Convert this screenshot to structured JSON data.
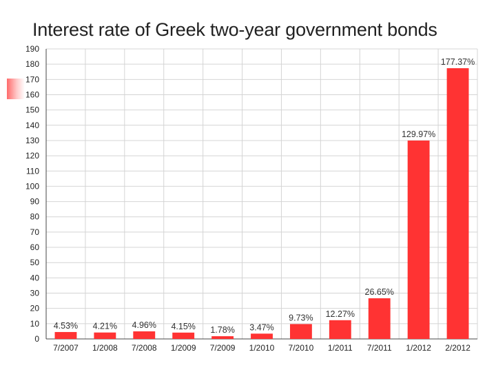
{
  "chart_data": {
    "type": "bar",
    "title": "Interest rate of Greek two-year government bonds",
    "xlabel": "",
    "ylabel": "",
    "ylim": [
      0,
      190
    ],
    "yticks": [
      0,
      10,
      20,
      30,
      40,
      50,
      60,
      70,
      80,
      90,
      100,
      110,
      120,
      130,
      140,
      150,
      160,
      170,
      180,
      190
    ],
    "grid": true,
    "bar_color": "#ff3333",
    "categories": [
      "7/2007",
      "1/2008",
      "7/2008",
      "1/2009",
      "7/2009",
      "1/2010",
      "7/2010",
      "1/2011",
      "7/2011",
      "1/2012",
      "2/2012"
    ],
    "values": [
      4.53,
      4.21,
      4.96,
      4.15,
      1.78,
      3.47,
      9.73,
      12.27,
      26.65,
      129.97,
      177.37
    ],
    "data_labels": [
      "4.53%",
      "4.21%",
      "4.96%",
      "4.15%",
      "1.78%",
      "3.47%",
      "9.73%",
      "12.27%",
      "26.65%",
      "129.97%",
      "177.37%"
    ]
  }
}
